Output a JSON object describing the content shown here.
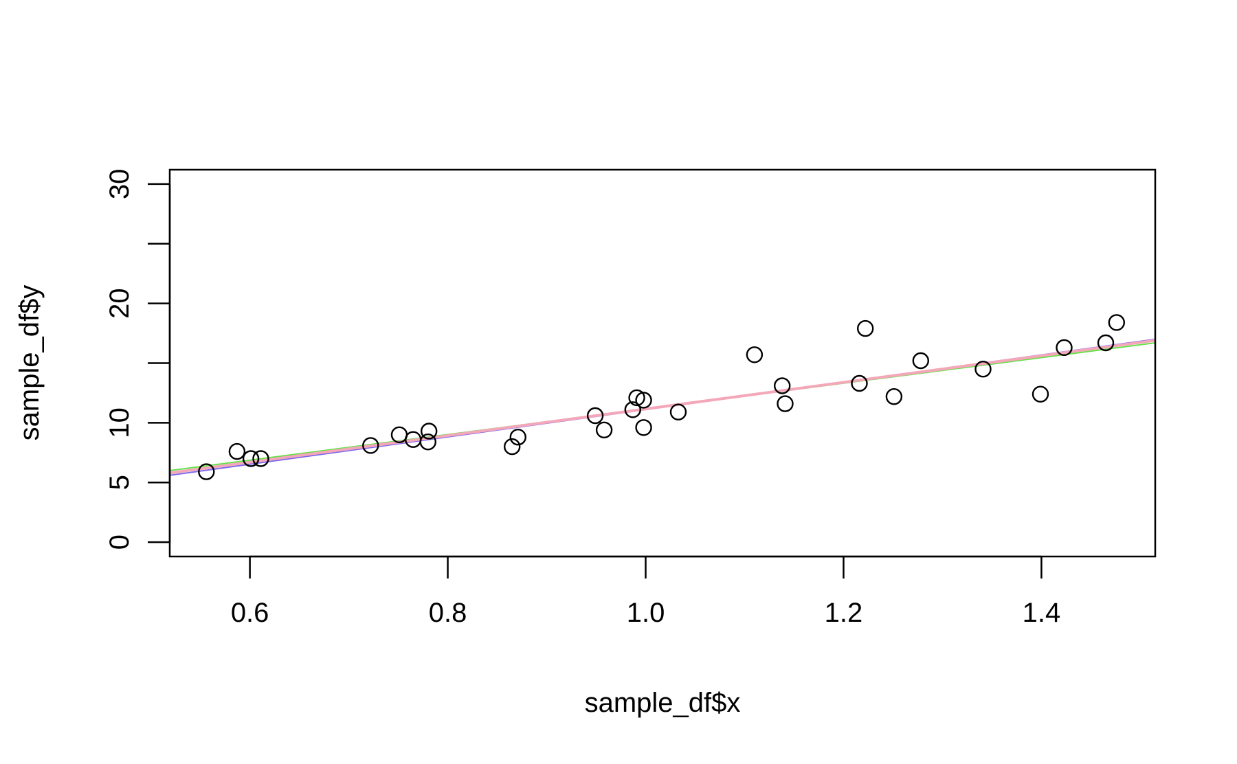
{
  "chart_data": {
    "type": "scatter",
    "title": "",
    "xlabel": "sample_df$x",
    "ylabel": "sample_df$y",
    "xlim": [
      0.519,
      1.515
    ],
    "ylim": [
      -1.2,
      31.2
    ],
    "x_ticks": [
      {
        "value": 0.6,
        "label": "0.6"
      },
      {
        "value": 0.8,
        "label": "0.8"
      },
      {
        "value": 1.0,
        "label": "1.0"
      },
      {
        "value": 1.2,
        "label": "1.2"
      },
      {
        "value": 1.4,
        "label": "1.4"
      }
    ],
    "y_ticks": [
      {
        "value": 0,
        "label": "0"
      },
      {
        "value": 5,
        "label": "5"
      },
      {
        "value": 10,
        "label": "10"
      },
      {
        "value": 15,
        "label": ""
      },
      {
        "value": 20,
        "label": "20"
      },
      {
        "value": 25,
        "label": ""
      },
      {
        "value": 30,
        "label": "30"
      }
    ],
    "grid": false,
    "point_style": "open-circle",
    "points": [
      {
        "x": 0.556,
        "y": 5.9
      },
      {
        "x": 0.587,
        "y": 7.6
      },
      {
        "x": 0.601,
        "y": 7.0
      },
      {
        "x": 0.611,
        "y": 7.0
      },
      {
        "x": 0.722,
        "y": 8.1
      },
      {
        "x": 0.751,
        "y": 9.0
      },
      {
        "x": 0.765,
        "y": 8.6
      },
      {
        "x": 0.78,
        "y": 8.4
      },
      {
        "x": 0.781,
        "y": 9.3
      },
      {
        "x": 0.865,
        "y": 8.0
      },
      {
        "x": 0.871,
        "y": 8.8
      },
      {
        "x": 0.949,
        "y": 10.6
      },
      {
        "x": 0.958,
        "y": 9.4
      },
      {
        "x": 0.987,
        "y": 11.1
      },
      {
        "x": 0.991,
        "y": 12.1
      },
      {
        "x": 0.998,
        "y": 9.6
      },
      {
        "x": 0.998,
        "y": 11.9
      },
      {
        "x": 1.033,
        "y": 10.9
      },
      {
        "x": 1.11,
        "y": 15.7
      },
      {
        "x": 1.138,
        "y": 13.1
      },
      {
        "x": 1.141,
        "y": 11.6
      },
      {
        "x": 1.216,
        "y": 13.3
      },
      {
        "x": 1.222,
        "y": 17.9
      },
      {
        "x": 1.251,
        "y": 12.2
      },
      {
        "x": 1.278,
        "y": 15.2
      },
      {
        "x": 1.341,
        "y": 14.5
      },
      {
        "x": 1.399,
        "y": 12.4
      },
      {
        "x": 1.423,
        "y": 16.3
      },
      {
        "x": 1.465,
        "y": 16.7
      },
      {
        "x": 1.476,
        "y": 18.4
      }
    ],
    "lines": [
      {
        "color": "#7b68ee",
        "x": [
          0.519,
          1.515
        ],
        "y": [
          5.6,
          17.0
        ]
      },
      {
        "color": "#66e04a",
        "x": [
          0.519,
          1.515
        ],
        "y": [
          6.0,
          16.7
        ]
      },
      {
        "color": "#f4a7b9",
        "x": [
          0.519,
          1.515
        ],
        "y": [
          5.8,
          16.9
        ]
      }
    ],
    "colors": {
      "points": "#000000",
      "axes": "#000000",
      "background": "#ffffff"
    }
  }
}
